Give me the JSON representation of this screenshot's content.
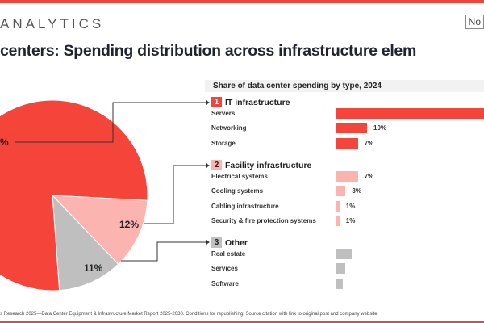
{
  "header": {
    "brand": "ANALYTICS",
    "badge": "No",
    "title": "centers: Spending distribution across infrastructure elem"
  },
  "footer": "s Research 2025—Data Center Equipment & Infrastructure Market Report 2025-2030. Conditions for republishing: Source citation with link to original post and company website.",
  "colors": {
    "it": "#f5443a",
    "facility": "#fbb4b0",
    "other": "#bfbfbf"
  },
  "chart_data": [
    {
      "type": "pie",
      "slices": [
        {
          "name": "IT infrastructure",
          "value": 77,
          "label": "%"
        },
        {
          "name": "Facility infrastructure",
          "value": 12,
          "label": "12%"
        },
        {
          "name": "Other",
          "value": 11,
          "label": "11%"
        }
      ]
    },
    {
      "type": "bar",
      "title": "Share of data center spending by type, 2024",
      "groups": [
        {
          "num": "1",
          "name": "IT infrastructure",
          "color": "#f5443a",
          "items": [
            {
              "label": "Servers",
              "value": 60,
              "text": ""
            },
            {
              "label": "Networking",
              "value": 10,
              "text": "10%"
            },
            {
              "label": "Storage",
              "value": 7,
              "text": "7%"
            }
          ]
        },
        {
          "num": "2",
          "name": "Facility infrastructure",
          "color": "#fbb4b0",
          "items": [
            {
              "label": "Electrical systems",
              "value": 7,
              "text": "7%"
            },
            {
              "label": "Cooling systems",
              "value": 3,
              "text": "3%"
            },
            {
              "label": "Cabling infrastructure",
              "value": 1,
              "text": "1%"
            },
            {
              "label": "Security & fire protection systems",
              "value": 1,
              "text": "1%"
            }
          ]
        },
        {
          "num": "3",
          "name": "Other",
          "color": "#bfbfbf",
          "items": [
            {
              "label": "Real estate",
              "value": 5,
              "text": ""
            },
            {
              "label": "Services",
              "value": 3,
              "text": ""
            },
            {
              "label": "Software",
              "value": 2,
              "text": ""
            }
          ]
        }
      ]
    }
  ]
}
